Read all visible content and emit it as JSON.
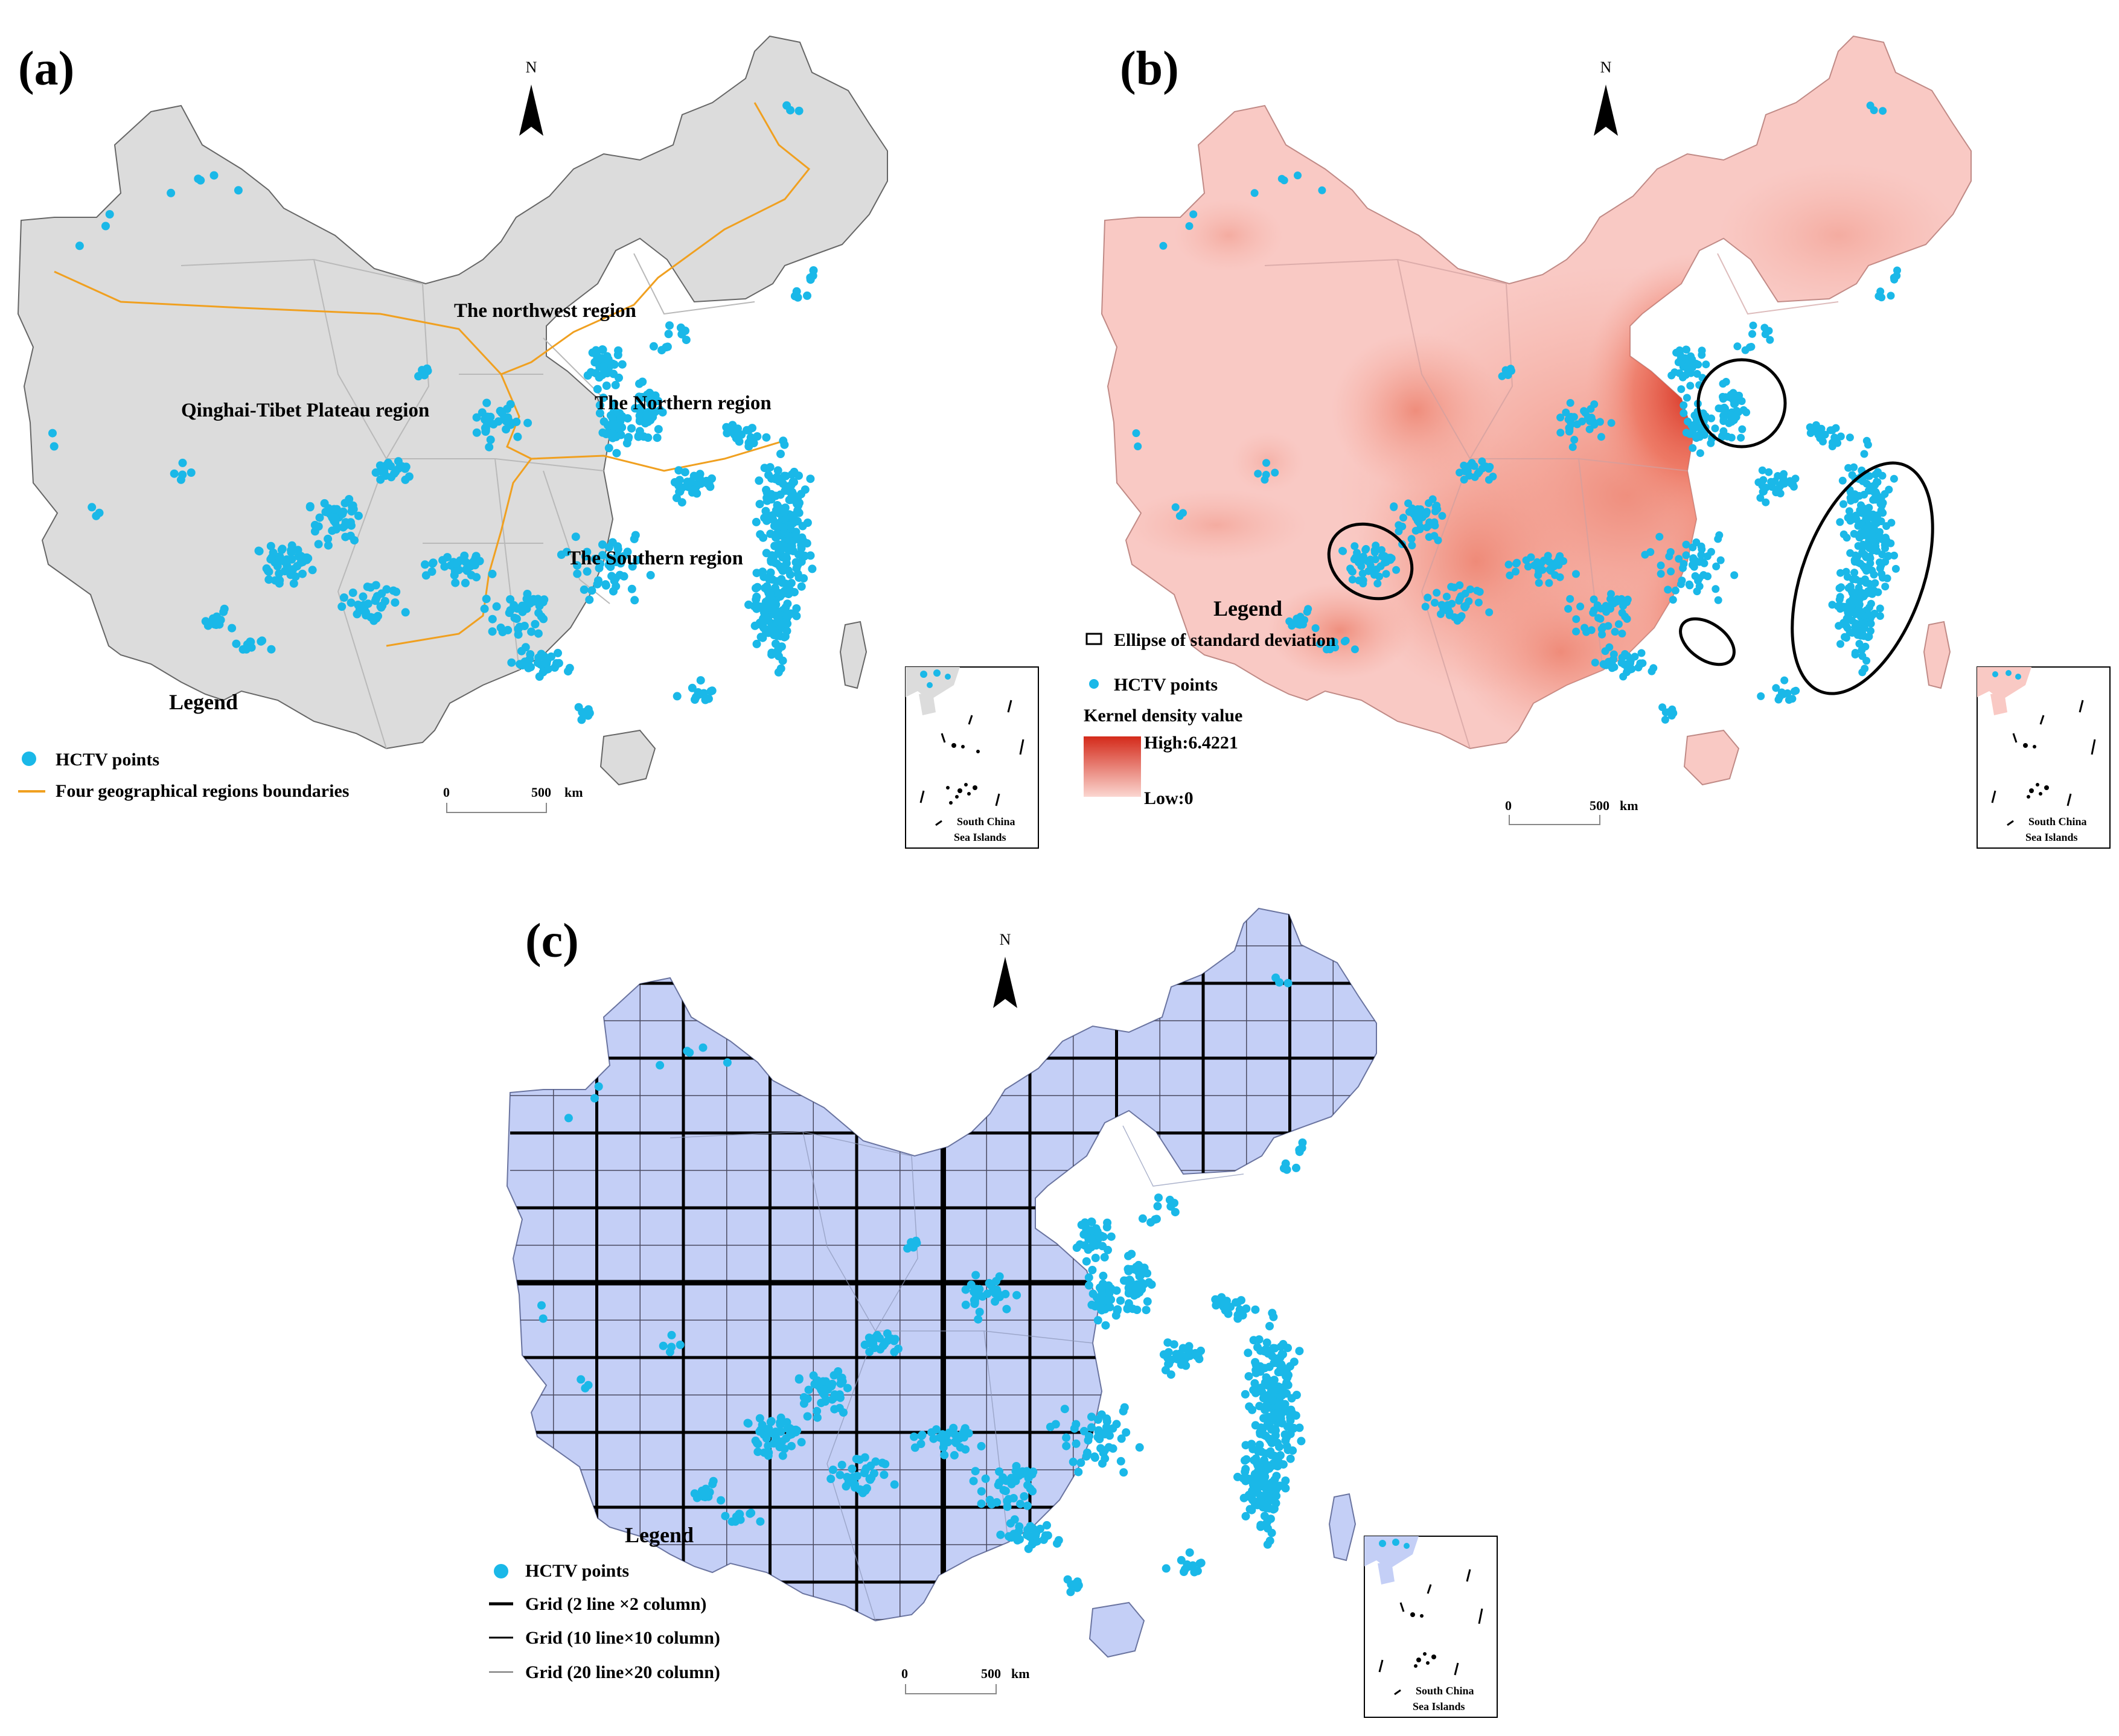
{
  "panels": {
    "a": {
      "label": "(a)",
      "north": "N",
      "regions": [
        "The northwest region",
        "Qinghai-Tibet Plateau region",
        "The Northern region",
        "The Southern region"
      ],
      "legend": {
        "title": "Legend",
        "points": "HCTV points",
        "boundaries": "Four geographical regions boundaries"
      },
      "scale": {
        "zero": "0",
        "dist": "500",
        "unit": "km"
      },
      "inset": {
        "line1": "South China",
        "line2": "Sea Islands"
      }
    },
    "b": {
      "label": "(b)",
      "north": "N",
      "legend": {
        "title": "Legend",
        "ellipse": "Ellipse of standard deviation",
        "points": "HCTV points",
        "kernel": "Kernel density value",
        "high": "High:6.4221",
        "low": "Low:0"
      },
      "scale": {
        "zero": "0",
        "dist": "500",
        "unit": "km"
      },
      "inset": {
        "line1": "South China",
        "line2": "Sea Islands"
      }
    },
    "c": {
      "label": "(c)",
      "north": "N",
      "legend": {
        "title": "Legend",
        "points": "HCTV points",
        "grid_2": "Grid (2 line ×2 column)",
        "grid_10": "Grid (10 line×10 column)",
        "grid_20": "Grid (20 line×20 column)"
      },
      "scale": {
        "zero": "0",
        "dist": "500",
        "unit": "km"
      },
      "inset": {
        "line1": "South China",
        "line2": "Sea Islands"
      }
    }
  },
  "colors": {
    "land_a": "#dcdcdc",
    "land_b": "#f9c9c4",
    "land_c": "#c4cff6",
    "points": "#1ab8e8",
    "region_boundary": "#f0a020",
    "density_high": "#d42a1a"
  }
}
